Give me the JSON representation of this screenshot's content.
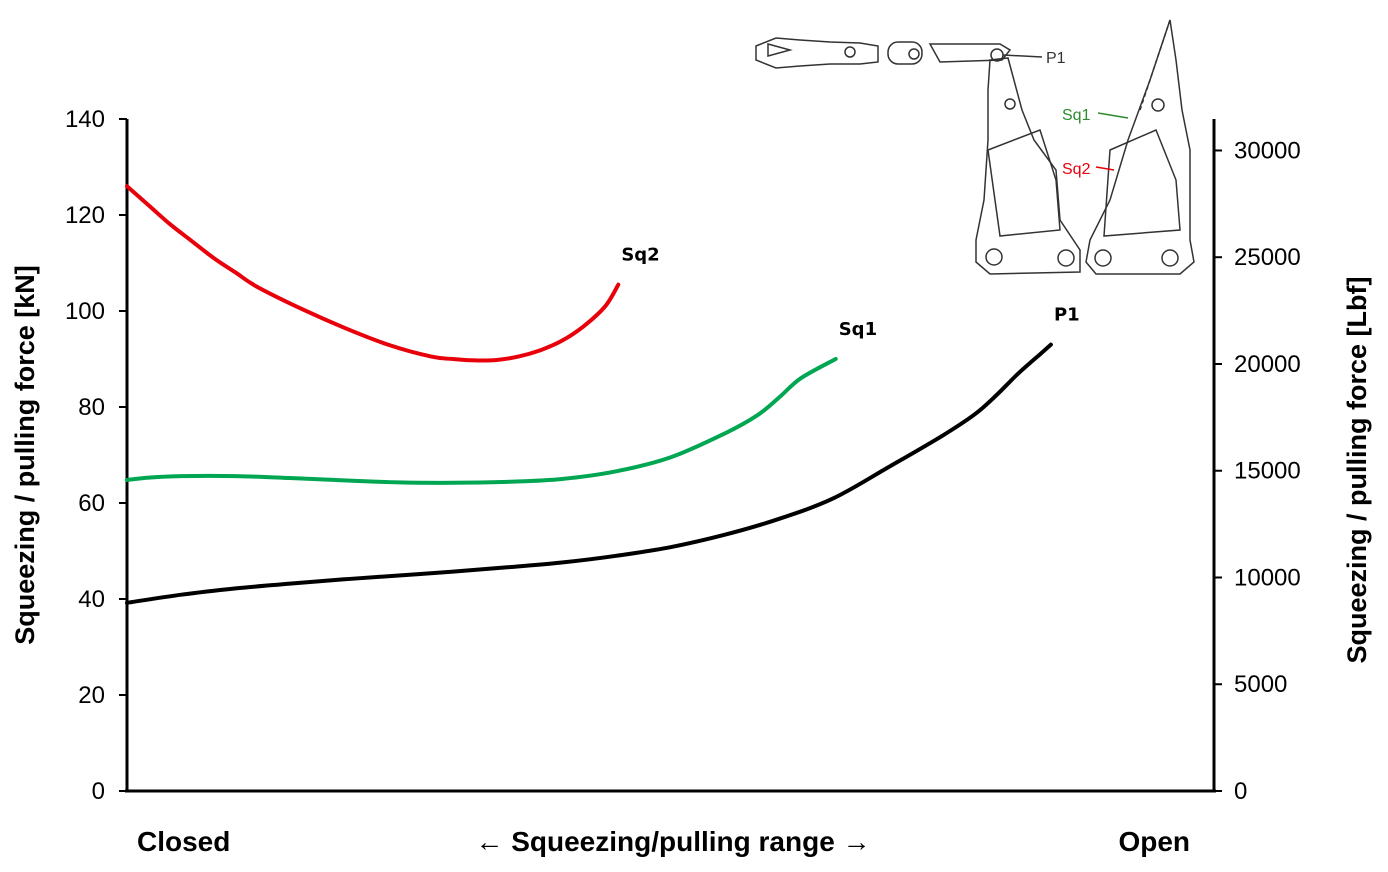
{
  "chart_data": {
    "type": "line",
    "title": "",
    "xlabel": "← Squeezing/pulling range →",
    "x_range_labels": {
      "left": "Closed",
      "right": "Open"
    },
    "xlim": [
      0,
      100
    ],
    "y_left": {
      "label": "Squeezing / pulling force [kN]",
      "ylim": [
        0,
        140
      ],
      "ticks": [
        "0",
        "20",
        "40",
        "60",
        "80",
        "100",
        "120",
        "140"
      ]
    },
    "y_right": {
      "label": "Squeezing / pulling force [Lbf]",
      "ylim": [
        0,
        31474
      ],
      "ticks": [
        "0",
        "5000",
        "10000",
        "15000",
        "20000",
        "25000",
        "30000"
      ]
    },
    "grid": false,
    "legend": "inline",
    "series": [
      {
        "name": "Sq2",
        "color": "#e8000b",
        "x": [
          0,
          2,
          4,
          6,
          8,
          10,
          12,
          16,
          20,
          24,
          28,
          30,
          32,
          34,
          36,
          38,
          40,
          42,
          44,
          45.2
        ],
        "y": [
          126,
          122,
          118,
          114.5,
          111,
          108,
          105,
          100.5,
          96.5,
          93,
          90.5,
          90,
          89.7,
          89.8,
          90.5,
          91.8,
          93.8,
          96.8,
          101,
          105.5
        ]
      },
      {
        "name": "Sq1",
        "color": "#00a651",
        "x": [
          0,
          2,
          5,
          10,
          15,
          20,
          25,
          30,
          35,
          40,
          45,
          50,
          55,
          58,
          60,
          62,
          65.2
        ],
        "y": [
          64.8,
          65.3,
          65.6,
          65.6,
          65.2,
          64.7,
          64.3,
          64.2,
          64.4,
          65,
          66.6,
          69.5,
          74.5,
          78.3,
          82,
          86,
          90
        ]
      },
      {
        "name": "P1",
        "color": "#000000",
        "x": [
          0,
          5,
          10,
          15,
          20,
          25,
          30,
          35,
          40,
          45,
          50,
          55,
          60,
          65,
          70,
          75,
          78,
          80,
          82,
          84,
          85
        ],
        "y": [
          39.2,
          40.9,
          42.2,
          43.2,
          44.1,
          44.9,
          45.7,
          46.6,
          47.6,
          49,
          50.8,
          53.4,
          56.7,
          61,
          67.4,
          74,
          78.5,
          82.5,
          87,
          91,
          93
        ]
      }
    ],
    "inset": {
      "description_labels": [
        "P1",
        "Sq1",
        "Sq2"
      ]
    }
  }
}
